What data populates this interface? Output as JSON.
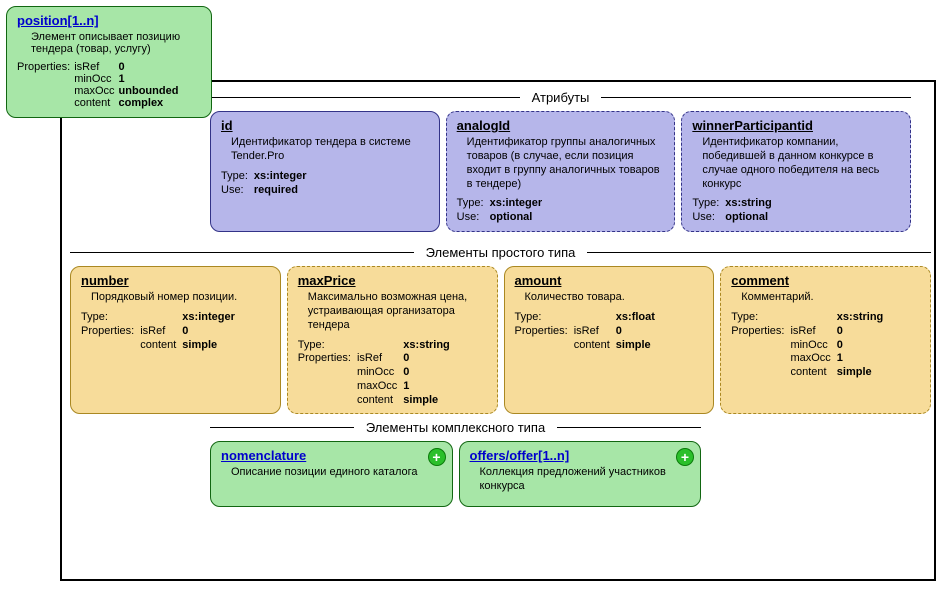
{
  "root": {
    "title": "position[1..n]",
    "desc": "Элемент описывает позицию тендера (товар, услугу)",
    "props_label": "Properties:",
    "props": [
      {
        "k": "isRef",
        "v": "0"
      },
      {
        "k": "minOcc",
        "v": "1"
      },
      {
        "k": "maxOcc",
        "v": "unbounded"
      },
      {
        "k": "content",
        "v": "complex"
      }
    ]
  },
  "attrs": {
    "header": "Атрибуты",
    "cards": [
      {
        "name": "id",
        "border": "solid",
        "title": "id",
        "desc": "Идентификатор тендера в системе Tender.Pro",
        "rows": [
          {
            "k": "Type:",
            "v": "xs:integer"
          },
          {
            "k": "Use:",
            "v": "required"
          }
        ]
      },
      {
        "name": "analogid",
        "border": "dashed",
        "title": "analogId",
        "desc": "Идентификатор группы аналогичных товаров (в случае, если позиция входит в группу аналогичных товаров в тендере)",
        "rows": [
          {
            "k": "Type:",
            "v": "xs:integer"
          },
          {
            "k": "Use:",
            "v": "optional"
          }
        ]
      },
      {
        "name": "winnerparticipantid",
        "border": "dashed",
        "title": "winnerParticipantid",
        "desc": "Идентификатор компании, победившей в данном конкурсе в случае одного победителя на весь конкурс",
        "rows": [
          {
            "k": "Type:",
            "v": "xs:string"
          },
          {
            "k": "Use:",
            "v": "optional"
          }
        ]
      }
    ]
  },
  "simple": {
    "header": "Элементы простого типа",
    "cards": [
      {
        "name": "number",
        "border": "solid",
        "title": "number",
        "desc": "Порядковый номер позиции.",
        "type": {
          "k": "Type:",
          "v": "xs:integer"
        },
        "props_label": "Properties:",
        "props": [
          {
            "k": "isRef",
            "v": "0"
          },
          {
            "k": "content",
            "v": "simple"
          }
        ]
      },
      {
        "name": "maxprice",
        "border": "dashed",
        "title": "maxPrice",
        "desc": "Максимально возможная цена, устраивающая организатора тендера",
        "type": {
          "k": "Type:",
          "v": "xs:string"
        },
        "props_label": "Properties:",
        "props": [
          {
            "k": "isRef",
            "v": "0"
          },
          {
            "k": "minOcc",
            "v": "0"
          },
          {
            "k": "maxOcc",
            "v": "1"
          },
          {
            "k": "content",
            "v": "simple"
          }
        ]
      },
      {
        "name": "amount",
        "border": "solid",
        "title": "amount",
        "desc": "Количество товара.",
        "type": {
          "k": "Type:",
          "v": "xs:float"
        },
        "props_label": "Properties:",
        "props": [
          {
            "k": "isRef",
            "v": "0"
          },
          {
            "k": "content",
            "v": "simple"
          }
        ]
      },
      {
        "name": "comment",
        "border": "dashed",
        "title": "comment",
        "desc": "Комментарий.",
        "type": {
          "k": "Type:",
          "v": "xs:string"
        },
        "props_label": "Properties:",
        "props": [
          {
            "k": "isRef",
            "v": "0"
          },
          {
            "k": "minOcc",
            "v": "0"
          },
          {
            "k": "maxOcc",
            "v": "1"
          },
          {
            "k": "content",
            "v": "simple"
          }
        ]
      }
    ]
  },
  "complex": {
    "header": "Элементы комплексного типа",
    "cards": [
      {
        "name": "nomenclature",
        "title": "nomenclature",
        "desc": "Описание позиции единого каталога"
      },
      {
        "name": "offers",
        "title": "offers/offer[1..n]",
        "desc": "Коллекция предложений участников конкурса"
      }
    ]
  },
  "colors": {
    "root_bg": "#a7e6a7",
    "root_border": "#116611",
    "attr_bg": "#b6b6ea",
    "attr_border": "#333388",
    "simple_bg": "#f7dc9a",
    "simple_border": "#aa8822",
    "complex_bg": "#a7e6a7",
    "complex_border": "#116611",
    "link_color": "#0000cc",
    "plus_bg": "#2bbf2b",
    "plus_border": "#0a7a0a"
  }
}
